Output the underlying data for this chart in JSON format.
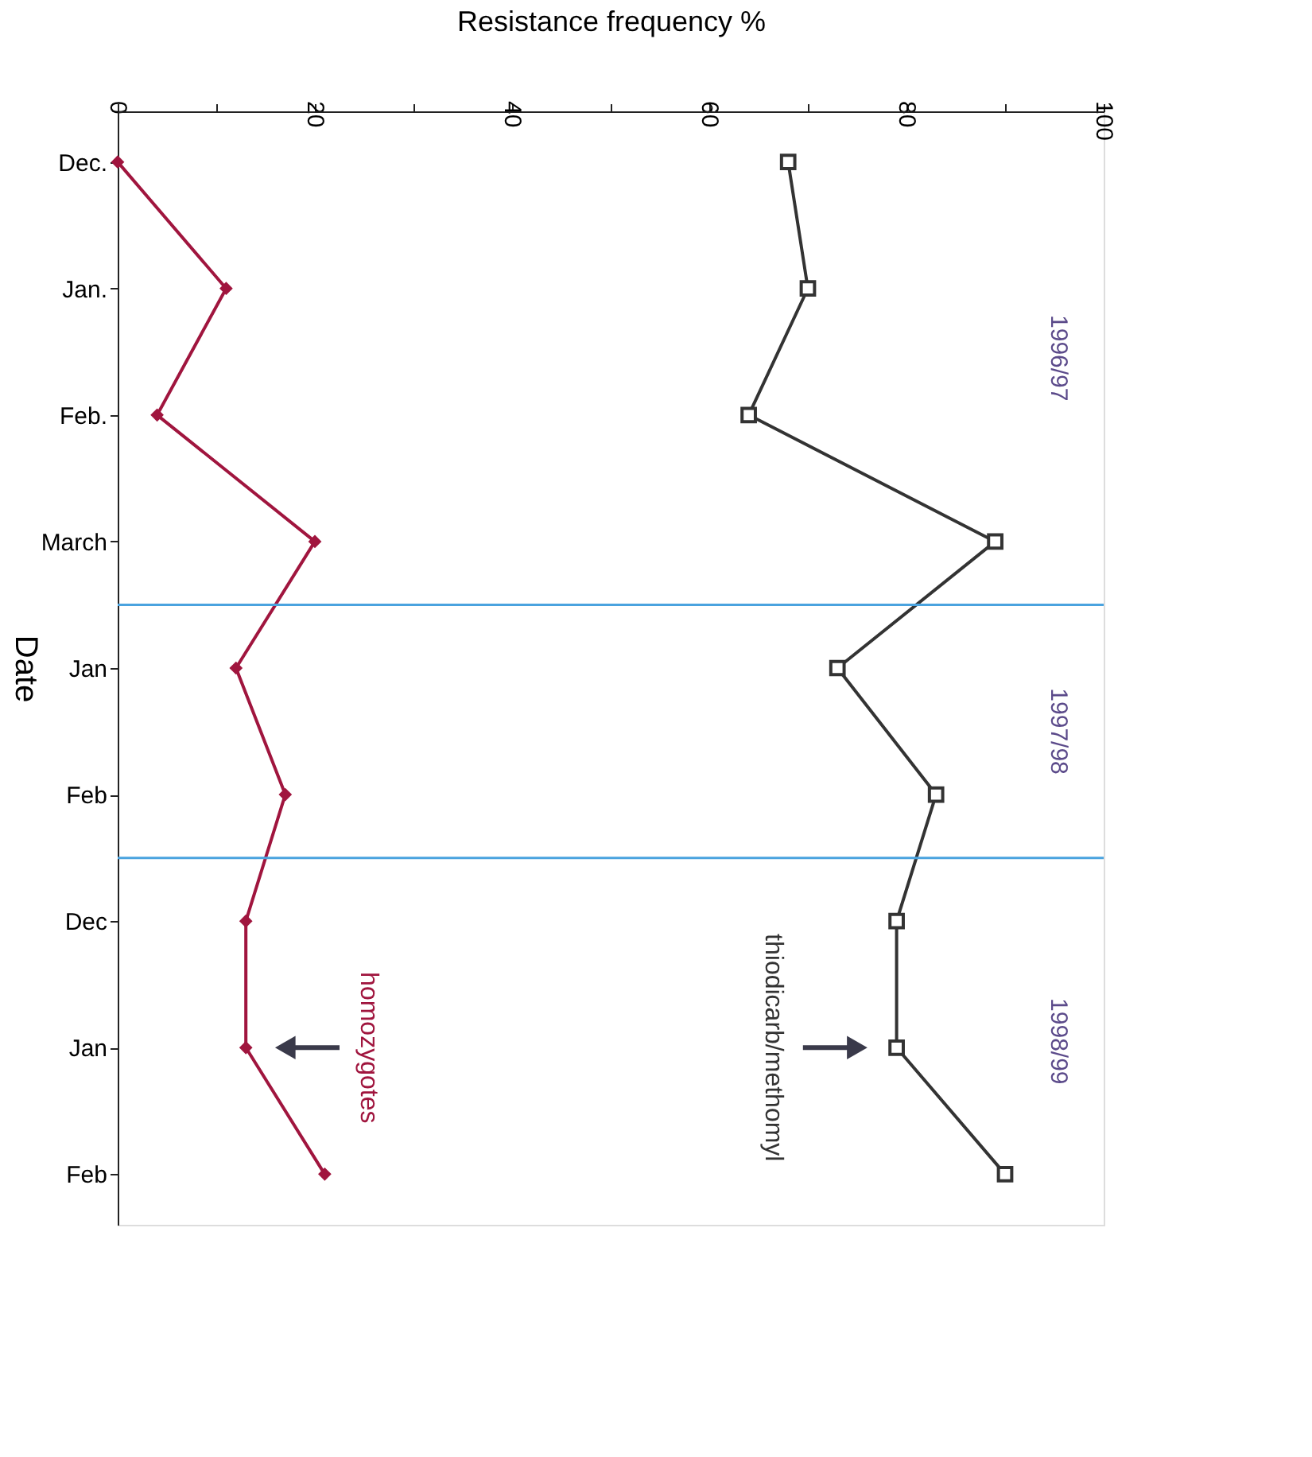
{
  "chart_data": {
    "type": "line",
    "orientation": "horizontal",
    "xlabel": "Resistance frequency %",
    "ylabel": "Date",
    "categories": [
      "Dec.",
      "Jan.",
      "Feb.",
      "March",
      "Jan",
      "Feb",
      "Dec",
      "Jan",
      "Feb"
    ],
    "xlim": [
      0,
      100
    ],
    "xticks": [
      0,
      {
        "value": 10,
        "label": null
      },
      20,
      {
        "value": 30,
        "label": null
      },
      40,
      {
        "value": 50,
        "label": null
      },
      60,
      {
        "value": 70,
        "label": null
      },
      80,
      {
        "value": 90,
        "label": null
      },
      100
    ],
    "series": [
      {
        "name": "thiodicarb/methomyl",
        "color": "#333333",
        "marker": "square",
        "values": [
          68,
          70,
          64,
          89,
          73,
          83,
          79,
          79,
          90
        ]
      },
      {
        "name": "homozygotes",
        "color": "#a0153e",
        "marker": "diamond",
        "values": [
          0,
          11,
          4,
          20,
          12,
          17,
          13,
          13,
          21
        ]
      }
    ],
    "annotations": [
      "1996/97",
      "1997/98",
      "1998/99"
    ],
    "grid": false
  }
}
